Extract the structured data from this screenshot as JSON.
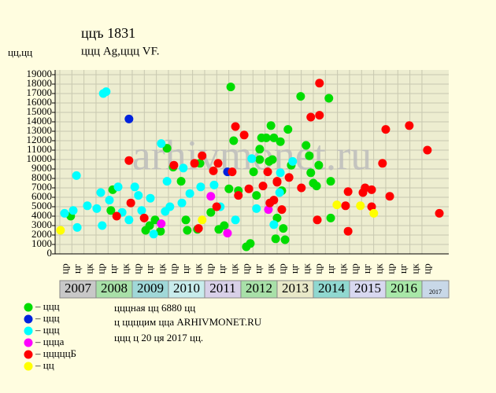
{
  "chart_data": {
    "type": "scatter",
    "title": "ццъ 1831",
    "subtitle": "ццц Ag,ццц VF.",
    "y_label": "цц,цц",
    "watermark": "arhivmonet.ru",
    "notes": [
      "цццная цц 6880 цц",
      "ц ццццим цца ARHIVMONET.RU",
      "ццц ц 20 ця 2017 цц."
    ],
    "xlim": [
      2006.87,
      2017.74
    ],
    "ylim": [
      0,
      19500
    ],
    "yticks": [
      0,
      1000,
      2000,
      3000,
      4000,
      5000,
      6000,
      7000,
      8000,
      9000,
      10000,
      11000,
      12000,
      13000,
      14000,
      15000,
      16000,
      17000,
      18000,
      19000
    ],
    "grid": true,
    "years": [
      2007,
      2008,
      2009,
      2010,
      2011,
      2012,
      2013,
      2014,
      2015,
      2016,
      2017
    ],
    "year_colors": [
      "#c8c8c8",
      "#a8e0a8",
      "#a0d8d8",
      "#c8ecec",
      "#d8d0e8",
      "#a8e0a8",
      "#e8e8c8",
      "#90d8d0",
      "#d8d8f0",
      "#a8e8a8",
      "#c8d8e8"
    ],
    "period_labels": [
      "цр",
      "цг",
      "цк",
      "цр",
      "цг",
      "цк",
      "цр",
      "цг",
      "цк",
      "цр",
      "цг",
      "цк",
      "цр",
      "цг",
      "цк",
      "цр",
      "цг",
      "цк",
      "цр",
      "цг",
      "цк",
      "цр",
      "цг",
      "цк",
      "цр",
      "цг",
      "цк",
      "цр",
      "цг",
      "цк",
      "цр"
    ],
    "series": [
      {
        "name": "– ццц",
        "color": "#00dd00",
        "x": [
          2007.3,
          2008.41,
          2008.46,
          2009.37,
          2009.48,
          2009.63,
          2009.78,
          2009.96,
          2010.13,
          2010.35,
          2010.48,
          2010.52,
          2010.8,
          2010.87,
          2011.17,
          2011.39,
          2011.54,
          2011.67,
          2011.72,
          2011.8,
          2011.93,
          2012.15,
          2012.26,
          2012.35,
          2012.43,
          2012.52,
          2012.57,
          2012.7,
          2012.78,
          2012.83,
          2012.91,
          2012.96,
          2013.0,
          2013.09,
          2013.13,
          2013.22,
          2013.3,
          2013.39,
          2013.65,
          2013.8,
          2013.89,
          2013.93,
          2014.0,
          2014.09,
          2014.15,
          2014.43,
          2014.48,
          2014.48,
          2013.17,
          2012.87,
          2012.52
        ],
        "values": [
          4000,
          4600,
          6800,
          2500,
          3000,
          3600,
          2400,
          11200,
          9200,
          7700,
          3600,
          2500,
          2600,
          9600,
          4400,
          2600,
          3000,
          6900,
          17700,
          12000,
          6700,
          750,
          1100,
          8700,
          6200,
          11100,
          12300,
          12300,
          9800,
          13600,
          12300,
          1600,
          3800,
          11900,
          6700,
          1500,
          13200,
          9400,
          16700,
          11500,
          10400,
          8600,
          7500,
          7200,
          9400,
          16500,
          3800,
          7700,
          2700,
          10000,
          10000
        ]
      },
      {
        "name": "– ццц",
        "color": "#0022dd",
        "x": [
          2008.91,
          2011.63
        ],
        "values": [
          14300,
          8700
        ]
      },
      {
        "name": "– ццц",
        "color": "#00ffff",
        "x": [
          2007.13,
          2007.37,
          2007.48,
          2007.46,
          2007.76,
          2008.02,
          2008.13,
          2008.17,
          2008.2,
          2008.28,
          2008.37,
          2008.61,
          2008.72,
          2008.91,
          2009.07,
          2009.17,
          2009.26,
          2009.5,
          2009.59,
          2009.8,
          2009.91,
          2009.96,
          2010.04,
          2010.37,
          2010.41,
          2010.59,
          2010.89,
          2011.26,
          2011.43,
          2011.85,
          2012.3,
          2012.43,
          2012.91,
          2013.07,
          2013.43,
          2013.09
        ],
        "values": [
          4300,
          4600,
          2800,
          8300,
          5100,
          4800,
          6500,
          3000,
          17000,
          17200,
          5700,
          7100,
          4400,
          3600,
          7100,
          6200,
          4600,
          5900,
          2100,
          11700,
          4500,
          7700,
          5000,
          5400,
          9100,
          6400,
          7100,
          7300,
          5000,
          3600,
          10100,
          4800,
          3100,
          6500,
          9800,
          8600
        ]
      },
      {
        "name": "– ццца",
        "color": "#ff00ff",
        "x": [
          2009.8,
          2011.17,
          2011.63,
          2012.76
        ],
        "values": [
          3200,
          6100,
          2200,
          4700
        ]
      },
      {
        "name": "– цццццБ",
        "color": "#ff0000",
        "x": [
          2008.57,
          2008.91,
          2008.96,
          2009.33,
          2010.15,
          2010.72,
          2010.83,
          2010.93,
          2011.24,
          2011.33,
          2011.37,
          2011.76,
          2011.85,
          2011.93,
          2012.09,
          2012.22,
          2012.61,
          2012.74,
          2012.8,
          2013.0,
          2013.13,
          2013.33,
          2013.67,
          2013.93,
          2014.11,
          2014.17,
          2014.17,
          2014.96,
          2014.96,
          2014.89,
          2015.37,
          2015.43,
          2015.61,
          2015.61,
          2015.91,
          2016.0,
          2016.11,
          2016.65,
          2017.15,
          2017.48,
          2012.91,
          2013.0
        ],
        "values": [
          4000,
          9900,
          5400,
          3800,
          9400,
          9600,
          2700,
          10400,
          8800,
          5000,
          9600,
          8700,
          13500,
          6200,
          12600,
          6900,
          7200,
          8700,
          5400,
          7700,
          4700,
          8100,
          7000,
          14500,
          3600,
          18100,
          14700,
          6600,
          2400,
          5100,
          6500,
          7000,
          6800,
          5000,
          9600,
          13200,
          6100,
          13600,
          11000,
          4300,
          5700,
          7600
        ]
      },
      {
        "name": "– цц",
        "color": "#ffff00",
        "x": [
          2007.02,
          2010.93,
          2014.65,
          2015.3,
          2015.67
        ],
        "values": [
          2500,
          3600,
          5200,
          5100,
          4300
        ]
      }
    ]
  }
}
